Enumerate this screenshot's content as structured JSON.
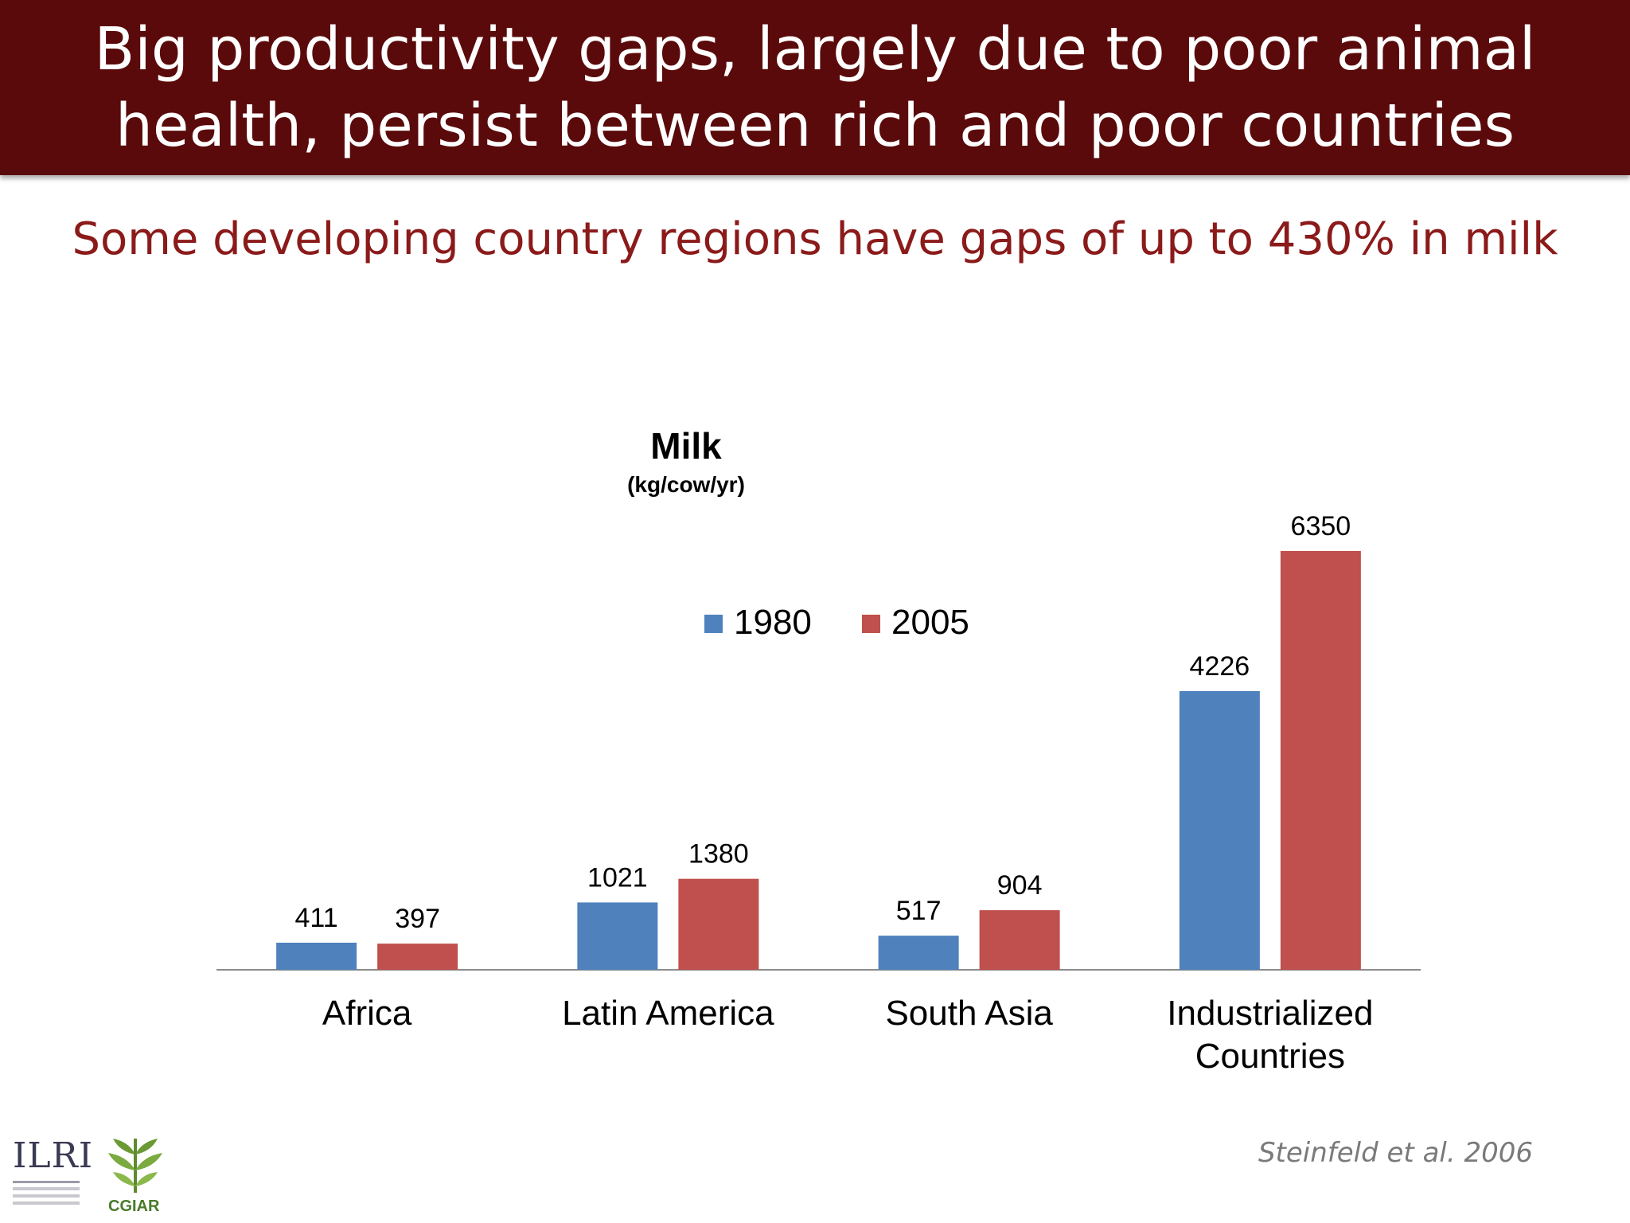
{
  "slide": {
    "title": "Big productivity gaps, largely due to poor animal\nhealth, persist between rich and poor countries",
    "subtitle": "Some developing country regions have gaps of up to 430% in milk",
    "citation": "Steinfeld et al. 2006",
    "logos": [
      {
        "icon": "ilri-logo",
        "text": "ILRI"
      },
      {
        "icon": "cgiar-logo",
        "text": "CGIAR"
      }
    ],
    "colors": {
      "header_bg": "#5a0a0a",
      "subtitle": "#8b1a1a"
    }
  },
  "chart_data": {
    "type": "bar",
    "title": "Milk",
    "subtitle": "(kg/cow/yr)",
    "categories": [
      [
        "Africa"
      ],
      [
        "Latin America"
      ],
      [
        "South Asia"
      ],
      [
        "Industrialized",
        "Countries"
      ]
    ],
    "series": [
      {
        "name": "1980",
        "color": "#4f81bd",
        "values": [
          411,
          1021,
          517,
          4226
        ]
      },
      {
        "name": "2005",
        "color": "#c0504d",
        "values": [
          397,
          1380,
          904,
          6350
        ]
      }
    ],
    "ylim": [
      0,
      6350
    ],
    "legend": "top-center",
    "grid": false,
    "data_labels": true
  }
}
